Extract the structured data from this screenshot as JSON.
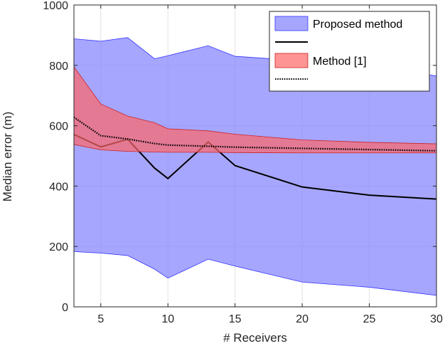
{
  "chart_data": {
    "type": "line",
    "title": "",
    "xlabel": "# Receivers",
    "ylabel": "Median error (m)",
    "xlim": [
      3,
      30
    ],
    "ylim": [
      0,
      1000
    ],
    "xticks": [
      5,
      10,
      15,
      20,
      25,
      30
    ],
    "yticks": [
      0,
      200,
      400,
      600,
      800,
      1000
    ],
    "grid": true,
    "legend_position": "top-right",
    "x": [
      3,
      5,
      7,
      9,
      10,
      13,
      15,
      20,
      25,
      30
    ],
    "series": [
      {
        "name": "Proposed method",
        "kind": "band",
        "color": "#8080ff",
        "edge_color": "#3333ff",
        "upper": [
          888,
          880,
          892,
          822,
          832,
          865,
          830,
          815,
          795,
          765
        ],
        "lower": [
          183,
          178,
          170,
          125,
          95,
          158,
          135,
          82,
          65,
          38
        ]
      },
      {
        "name": "",
        "kind": "line",
        "style": "solid",
        "color": "#000000",
        "values": [
          571,
          530,
          555,
          460,
          425,
          546,
          468,
          397,
          370,
          357
        ]
      },
      {
        "name": "Method [1]",
        "kind": "band",
        "color": "#ff6666",
        "edge_color": "#cc2222",
        "upper": [
          795,
          672,
          632,
          610,
          590,
          583,
          572,
          553,
          545,
          540
        ],
        "lower": [
          538,
          520,
          515,
          513,
          512,
          512,
          511,
          510,
          510,
          510
        ]
      },
      {
        "name": "",
        "kind": "line",
        "style": "dotted",
        "color": "#000000",
        "values": [
          628,
          567,
          556,
          541,
          536,
          532,
          529,
          525,
          521,
          517
        ]
      }
    ]
  }
}
